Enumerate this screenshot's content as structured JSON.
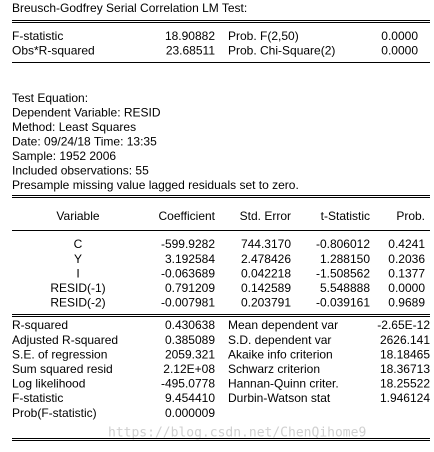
{
  "title": "Breusch-Godfrey Serial Correlation LM Test:",
  "test": {
    "rows": [
      [
        "F-statistic",
        "18.90882",
        "Prob. F(2,50)",
        "0.0000"
      ],
      [
        "Obs*R-squared",
        "23.68511",
        "Prob. Chi-Square(2)",
        "0.0000"
      ]
    ]
  },
  "equation": {
    "lines": [
      "Test Equation:",
      "Dependent Variable: RESID",
      "Method: Least Squares",
      "Date: 09/24/18   Time: 13:35",
      "Sample: 1952 2006",
      "Included observations: 55",
      "Presample missing value lagged residuals set to zero."
    ]
  },
  "coefficients": {
    "header": [
      "Variable",
      "Coefficient",
      "Std. Error",
      "t-Statistic",
      "Prob."
    ],
    "rows": [
      [
        "C",
        "-599.9282",
        "744.3170",
        "-0.806012",
        "0.4241"
      ],
      [
        "Y",
        "3.192584",
        "2.478426",
        "1.288150",
        "0.2036"
      ],
      [
        "I",
        "-0.063689",
        "0.042218",
        "-1.508562",
        "0.1377"
      ],
      [
        "RESID(-1)",
        "0.791209",
        "0.142589",
        "5.548888",
        "0.0000"
      ],
      [
        "RESID(-2)",
        "-0.007981",
        "0.203791",
        "-0.039161",
        "0.9689"
      ]
    ]
  },
  "statistics": {
    "rows": [
      [
        "R-squared",
        "0.430638",
        "Mean dependent var",
        "-2.65E-12"
      ],
      [
        "Adjusted R-squared",
        "0.385089",
        "S.D. dependent var",
        "2626.141"
      ],
      [
        "S.E. of regression",
        "2059.321",
        "Akaike info criterion",
        "18.18465"
      ],
      [
        "Sum squared resid",
        "2.12E+08",
        "Schwarz criterion",
        "18.36713"
      ],
      [
        "Log likelihood",
        "-495.0778",
        "Hannan-Quinn criter.",
        "18.25522"
      ],
      [
        "F-statistic",
        "9.454410",
        "Durbin-Watson stat",
        "1.946124"
      ],
      [
        "Prob(F-statistic)",
        "0.000009"
      ]
    ]
  },
  "watermark": "https://blog.csdn.net/ChenQihome9"
}
